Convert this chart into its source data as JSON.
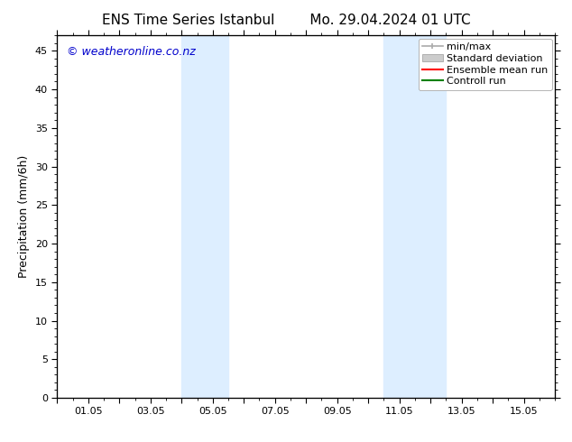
{
  "title_left": "ENS Time Series Istanbul",
  "title_right": "Mo. 29.04.2024 01 UTC",
  "ylabel": "Precipitation (mm/6h)",
  "xlabel": "",
  "xlim": [
    0,
    16
  ],
  "ylim": [
    0,
    47
  ],
  "yticks": [
    0,
    5,
    10,
    15,
    20,
    25,
    30,
    35,
    40,
    45
  ],
  "xtick_labels": [
    "",
    "01.05",
    "",
    "03.05",
    "",
    "05.05",
    "",
    "07.05",
    "",
    "09.05",
    "",
    "11.05",
    "",
    "13.05",
    "",
    "15.05"
  ],
  "xtick_positions": [
    0,
    1,
    2,
    3,
    4,
    5,
    6,
    7,
    8,
    9,
    10,
    11,
    12,
    13,
    14,
    15
  ],
  "shaded_regions": [
    {
      "x_start": 4.0,
      "x_end": 5.5,
      "color": "#ddeeff"
    },
    {
      "x_start": 10.5,
      "x_end": 12.5,
      "color": "#ddeeff"
    }
  ],
  "bg_color": "#ffffff",
  "plot_bg_color": "#ffffff",
  "watermark_text": "© weatheronline.co.nz",
  "watermark_color": "#0000cc",
  "legend_items": [
    {
      "label": "min/max",
      "color": "#aaaaaa",
      "style": "line_with_caps"
    },
    {
      "label": "Standard deviation",
      "color": "#cccccc",
      "style": "filled_rect"
    },
    {
      "label": "Ensemble mean run",
      "color": "#ff0000",
      "style": "line"
    },
    {
      "label": "Controll run",
      "color": "#008000",
      "style": "line"
    }
  ],
  "border_color": "#000000",
  "tick_color": "#000000",
  "font_size_title": 11,
  "font_size_labels": 9,
  "font_size_ticks": 8,
  "font_size_watermark": 9,
  "font_size_legend": 8
}
